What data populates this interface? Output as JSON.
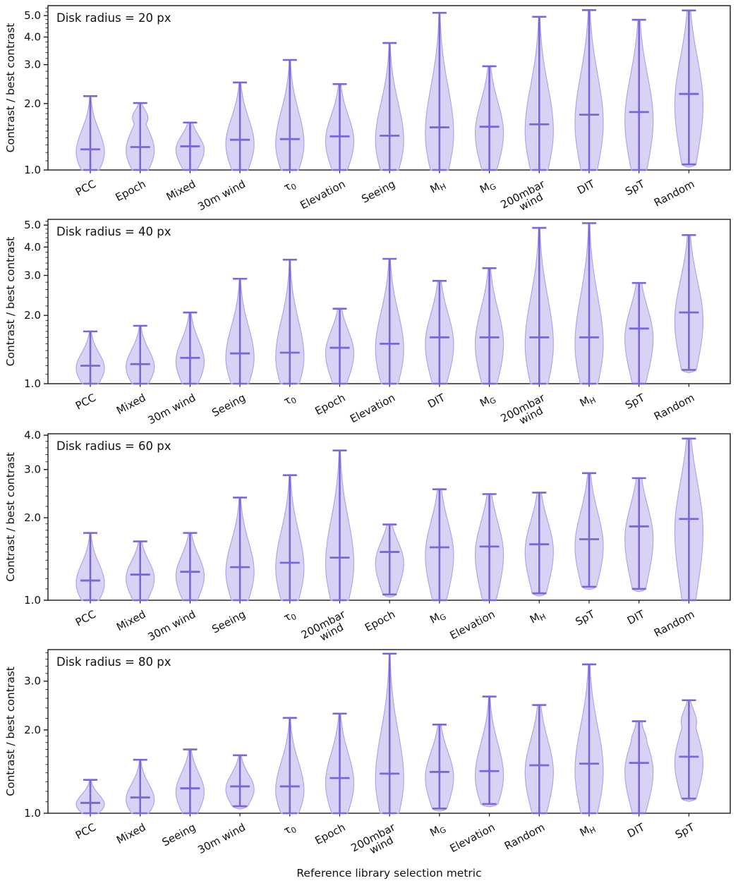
{
  "figure": {
    "xlabel": "Reference library selection metric",
    "ylabel": "Contrast / best contrast",
    "colors": {
      "violin_fill": "rgba(150,130,225,0.36)",
      "violin_edge": "#b0a4ec",
      "whisker_line": "#7866da",
      "axis": "#1a1a1a"
    }
  },
  "chart_data": [
    {
      "type": "violin",
      "title": "Disk radius = 20 px",
      "ylabel": "Contrast / best contrast",
      "yscale": "log",
      "ylim": [
        1.0,
        5.55
      ],
      "yticks": [
        1.0,
        2.0,
        3.0,
        4.0,
        5.0
      ],
      "categories": [
        "PCC",
        "Epoch",
        "Mixed",
        "30m wind",
        "τ_0",
        "Elevation",
        "Seeing",
        "M_H",
        "M_G",
        "200mbar\nwind",
        "DIT",
        "SpT",
        "Random"
      ],
      "violins": [
        {
          "label": "PCC",
          "min": 1.0,
          "max": 2.16,
          "median": 1.24
        },
        {
          "label": "Epoch",
          "min": 1.0,
          "max": 2.01,
          "median": 1.27,
          "b2": true
        },
        {
          "label": "Mixed",
          "min": 1.0,
          "max": 1.64,
          "median": 1.28
        },
        {
          "label": "30m wind",
          "min": 1.0,
          "max": 2.49,
          "median": 1.37
        },
        {
          "label": "τ_0",
          "min": 1.0,
          "max": 3.15,
          "median": 1.38
        },
        {
          "label": "Elevation",
          "min": 1.0,
          "max": 2.45,
          "median": 1.42
        },
        {
          "label": "Seeing",
          "min": 1.0,
          "max": 3.76,
          "median": 1.43
        },
        {
          "label": "M_H",
          "min": 1.0,
          "max": 5.15,
          "median": 1.56
        },
        {
          "label": "M_G",
          "min": 1.0,
          "max": 2.95,
          "median": 1.57
        },
        {
          "label": "200mbar\nwind",
          "min": 1.0,
          "max": 4.94,
          "median": 1.61
        },
        {
          "label": "DIT",
          "min": 1.0,
          "max": 5.3,
          "median": 1.78
        },
        {
          "label": "SpT",
          "min": 1.0,
          "max": 4.79,
          "median": 1.83
        },
        {
          "label": "Random",
          "min": 1.06,
          "max": 5.28,
          "median": 2.21
        }
      ]
    },
    {
      "type": "violin",
      "title": "Disk radius = 40 px",
      "ylabel": "Contrast / best contrast",
      "yscale": "log",
      "ylim": [
        1.0,
        5.3
      ],
      "yticks": [
        1.0,
        2.0,
        3.0,
        4.0,
        5.0
      ],
      "categories": [
        "PCC",
        "Mixed",
        "30m wind",
        "Seeing",
        "τ_0",
        "Epoch",
        "Elevation",
        "DIT",
        "M_G",
        "200mbar\nwind",
        "M_H",
        "SpT",
        "Random"
      ],
      "violins": [
        {
          "label": "PCC",
          "min": 1.0,
          "max": 1.7,
          "median": 1.2
        },
        {
          "label": "Mixed",
          "min": 1.0,
          "max": 1.8,
          "median": 1.22
        },
        {
          "label": "30m wind",
          "min": 1.0,
          "max": 2.06,
          "median": 1.3
        },
        {
          "label": "Seeing",
          "min": 1.0,
          "max": 2.9,
          "median": 1.36
        },
        {
          "label": "τ_0",
          "min": 1.0,
          "max": 3.52,
          "median": 1.37
        },
        {
          "label": "Epoch",
          "min": 1.0,
          "max": 2.14,
          "median": 1.44
        },
        {
          "label": "Elevation",
          "min": 1.0,
          "max": 3.55,
          "median": 1.5
        },
        {
          "label": "DIT",
          "min": 1.0,
          "max": 2.84,
          "median": 1.6
        },
        {
          "label": "M_G",
          "min": 1.0,
          "max": 3.23,
          "median": 1.6
        },
        {
          "label": "200mbar\nwind",
          "min": 1.0,
          "max": 4.86,
          "median": 1.6
        },
        {
          "label": "M_H",
          "min": 1.0,
          "max": 5.1,
          "median": 1.6
        },
        {
          "label": "SpT",
          "min": 1.0,
          "max": 2.78,
          "median": 1.75
        },
        {
          "label": "Random",
          "min": 1.15,
          "max": 4.52,
          "median": 2.06
        }
      ]
    },
    {
      "type": "violin",
      "title": "Disk radius = 60 px",
      "ylabel": "Contrast / best contrast",
      "yscale": "log",
      "ylim": [
        1.0,
        4.05
      ],
      "yticks": [
        1.0,
        2.0,
        3.0,
        4.0
      ],
      "categories": [
        "PCC",
        "Mixed",
        "30m wind",
        "Seeing",
        "τ_0",
        "200mbar\nwind",
        "Epoch",
        "M_G",
        "Elevation",
        "M_H",
        "SpT",
        "DIT",
        "Random"
      ],
      "violins": [
        {
          "label": "PCC",
          "min": 1.0,
          "max": 1.76,
          "median": 1.18
        },
        {
          "label": "Mixed",
          "min": 1.0,
          "max": 1.64,
          "median": 1.24
        },
        {
          "label": "30m wind",
          "min": 1.0,
          "max": 1.76,
          "median": 1.27
        },
        {
          "label": "Seeing",
          "min": 1.0,
          "max": 2.37,
          "median": 1.32
        },
        {
          "label": "τ_0",
          "min": 1.0,
          "max": 2.86,
          "median": 1.37
        },
        {
          "label": "200mbar\nwind",
          "min": 1.0,
          "max": 3.52,
          "median": 1.43
        },
        {
          "label": "Epoch",
          "min": 1.05,
          "max": 1.89,
          "median": 1.5
        },
        {
          "label": "M_G",
          "min": 1.0,
          "max": 2.54,
          "median": 1.56
        },
        {
          "label": "Elevation",
          "min": 1.0,
          "max": 2.44,
          "median": 1.57
        },
        {
          "label": "M_H",
          "min": 1.06,
          "max": 2.47,
          "median": 1.6
        },
        {
          "label": "SpT",
          "min": 1.12,
          "max": 2.91,
          "median": 1.67
        },
        {
          "label": "DIT",
          "min": 1.1,
          "max": 2.79,
          "median": 1.86
        },
        {
          "label": "Random",
          "min": 1.0,
          "max": 3.89,
          "median": 1.98
        }
      ]
    },
    {
      "type": "violin",
      "title": "Disk radius = 80 px",
      "ylabel": "Contrast / best contrast",
      "yscale": "log",
      "ylim": [
        1.0,
        3.9
      ],
      "yticks": [
        1.0,
        2.0,
        3.0
      ],
      "categories": [
        "PCC",
        "Mixed",
        "Seeing",
        "30m wind",
        "τ_0",
        "Epoch",
        "200mbar\nwind",
        "M_G",
        "Elevation",
        "Random",
        "M_H",
        "DIT",
        "SpT"
      ],
      "violins": [
        {
          "label": "PCC",
          "min": 1.0,
          "max": 1.32,
          "median": 1.09
        },
        {
          "label": "Mixed",
          "min": 1.0,
          "max": 1.56,
          "median": 1.14
        },
        {
          "label": "Seeing",
          "min": 1.0,
          "max": 1.7,
          "median": 1.23
        },
        {
          "label": "30m wind",
          "min": 1.06,
          "max": 1.62,
          "median": 1.25
        },
        {
          "label": "τ_0",
          "min": 1.0,
          "max": 2.21,
          "median": 1.25
        },
        {
          "label": "Epoch",
          "min": 1.0,
          "max": 2.29,
          "median": 1.34
        },
        {
          "label": "200mbar\nwind",
          "min": 1.0,
          "max": 3.77,
          "median": 1.39
        },
        {
          "label": "M_G",
          "min": 1.04,
          "max": 2.09,
          "median": 1.41
        },
        {
          "label": "Elevation",
          "min": 1.08,
          "max": 2.64,
          "median": 1.42
        },
        {
          "label": "Random",
          "min": 1.0,
          "max": 2.46,
          "median": 1.49
        },
        {
          "label": "M_H",
          "min": 1.0,
          "max": 3.45,
          "median": 1.51
        },
        {
          "label": "DIT",
          "min": 1.0,
          "max": 2.15,
          "median": 1.52,
          "b2": true
        },
        {
          "label": "SpT",
          "min": 1.13,
          "max": 2.56,
          "median": 1.6,
          "b2": true
        }
      ]
    }
  ]
}
